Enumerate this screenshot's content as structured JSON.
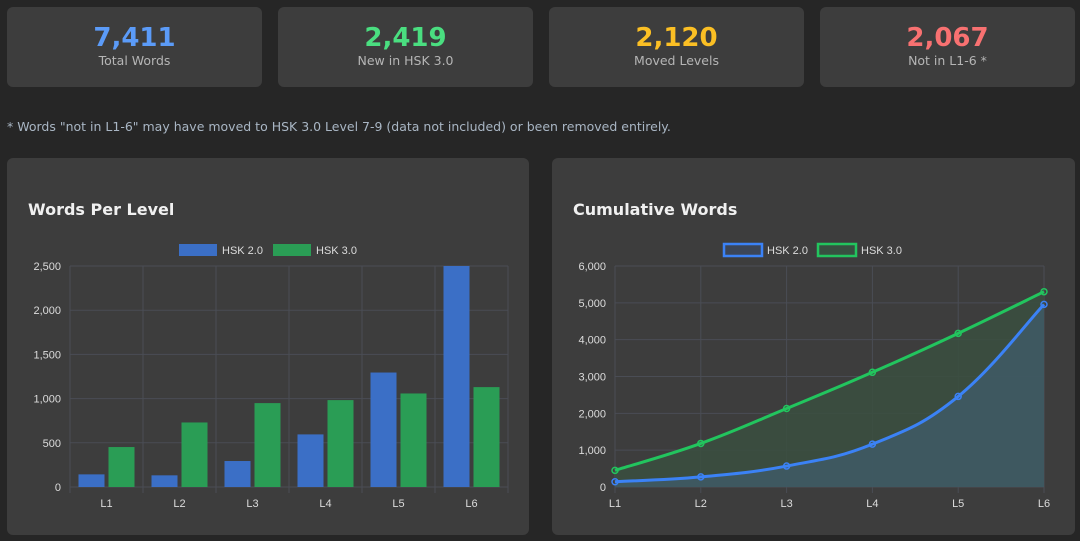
{
  "stats": [
    {
      "value": "7,411",
      "label": "Total Words",
      "color": "#5b9bf8"
    },
    {
      "value": "2,419",
      "label": "New in HSK 3.0",
      "color": "#4ade80"
    },
    {
      "value": "2,120",
      "label": "Moved Levels",
      "color": "#fbbf24"
    },
    {
      "value": "2,067",
      "label": "Not in L1-6 *",
      "color": "#f87171"
    }
  ],
  "note": "* Words \"not in L1-6\" may have moved to HSK 3.0 Level 7-9 (data not included) or been removed entirely.",
  "chart_data": [
    {
      "type": "bar",
      "title": "Words Per Level",
      "categories": [
        "L1",
        "L2",
        "L3",
        "L4",
        "L5",
        "L6"
      ],
      "series": [
        {
          "name": "HSK 2.0",
          "values": [
            143,
            132,
            294,
            595,
            1295,
            2500
          ],
          "color": "#3b6fc6"
        },
        {
          "name": "HSK 3.0",
          "values": [
            452,
            730,
            949,
            983,
            1058,
            1130
          ],
          "color": "#2a9d55"
        }
      ],
      "ylim": [
        0,
        2500
      ],
      "yticks": [
        0,
        500,
        1000,
        1500,
        2000,
        2500
      ],
      "ytick_labels": [
        "0",
        "500",
        "1,000",
        "1,500",
        "2,000",
        "2,500"
      ],
      "legend": "top",
      "grid": true
    },
    {
      "type": "area",
      "title": "Cumulative Words",
      "categories": [
        "L1",
        "L2",
        "L3",
        "L4",
        "L5",
        "L6"
      ],
      "series": [
        {
          "name": "HSK 2.0",
          "values": [
            143,
            275,
            569,
            1164,
            2459,
            4959
          ],
          "color": "#3b82f6"
        },
        {
          "name": "HSK 3.0",
          "values": [
            452,
            1182,
            2131,
            3114,
            4172,
            5302
          ],
          "color": "#22c55e"
        }
      ],
      "ylim": [
        0,
        6000
      ],
      "yticks": [
        0,
        1000,
        2000,
        3000,
        4000,
        5000,
        6000
      ],
      "ytick_labels": [
        "0",
        "1,000",
        "2,000",
        "3,000",
        "4,000",
        "5,000",
        "6,000"
      ],
      "legend": "top",
      "grid": true
    }
  ]
}
